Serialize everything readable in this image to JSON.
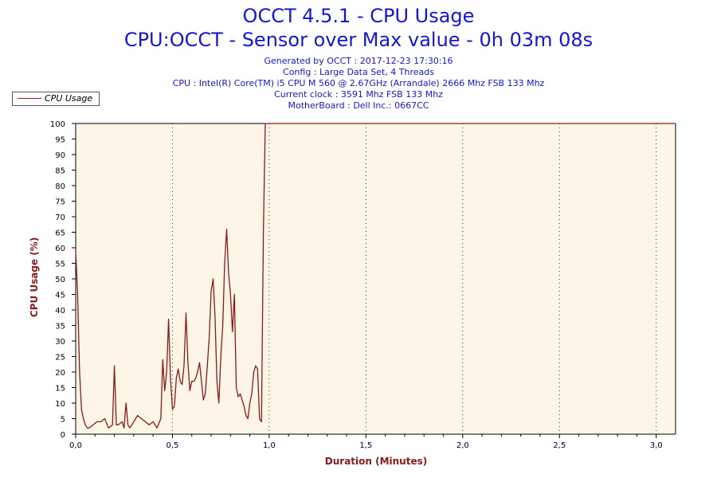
{
  "header": {
    "title": "OCCT 4.5.1 - CPU Usage",
    "subtitle": "CPU:OCCT - Sensor over Max value - 0h 03m 08s"
  },
  "info": {
    "generated": "Generated by OCCT : 2017-12-23 17:30:16",
    "config": "Config : Large Data Set, 4 Threads",
    "cpu": "CPU : Intel(R) Core(TM) i5 CPU M 560 @ 2.67GHz (Arrandale) 2666 Mhz FSB 133 Mhz",
    "clock": "Current clock : 3591 Mhz FSB 133 Mhz",
    "motherboard": "MotherBoard : Dell Inc.: 0667CC"
  },
  "colors": {
    "title": "#1515d4",
    "series": "#8b1a1a",
    "plot_background": "#fdf5e6",
    "axis_label": "#8b1a1a"
  },
  "chart_data": {
    "type": "line",
    "title": "OCCT 4.5.1 - CPU Usage",
    "xlabel": "Duration (Minutes)",
    "ylabel": "CPU Usage (%)",
    "xlim": [
      0,
      3.1
    ],
    "ylim": [
      0,
      100
    ],
    "x_ticks": [
      0,
      0.5,
      1.0,
      1.5,
      2.0,
      2.5,
      3.0
    ],
    "x_tick_labels": [
      "0,0",
      "0,5",
      "1,0",
      "1,5",
      "2,0",
      "2,5",
      "3,0"
    ],
    "y_ticks": [
      0,
      5,
      10,
      15,
      20,
      25,
      30,
      35,
      40,
      45,
      50,
      55,
      60,
      65,
      70,
      75,
      80,
      85,
      90,
      95,
      100
    ],
    "grid": "vertical dotted",
    "legend_position": "top-left",
    "series": [
      {
        "name": "CPU Usage",
        "x": [
          0.0,
          0.01,
          0.02,
          0.03,
          0.04,
          0.05,
          0.06,
          0.07,
          0.09,
          0.11,
          0.13,
          0.15,
          0.17,
          0.19,
          0.2,
          0.21,
          0.22,
          0.24,
          0.25,
          0.26,
          0.27,
          0.28,
          0.3,
          0.32,
          0.34,
          0.36,
          0.38,
          0.4,
          0.42,
          0.44,
          0.45,
          0.46,
          0.47,
          0.48,
          0.49,
          0.5,
          0.51,
          0.52,
          0.53,
          0.54,
          0.55,
          0.56,
          0.57,
          0.58,
          0.59,
          0.6,
          0.61,
          0.62,
          0.63,
          0.64,
          0.65,
          0.66,
          0.67,
          0.68,
          0.69,
          0.7,
          0.71,
          0.72,
          0.73,
          0.74,
          0.75,
          0.76,
          0.77,
          0.78,
          0.79,
          0.8,
          0.81,
          0.82,
          0.83,
          0.84,
          0.85,
          0.86,
          0.87,
          0.88,
          0.89,
          0.9,
          0.91,
          0.92,
          0.93,
          0.94,
          0.95,
          0.96,
          0.97,
          0.98,
          0.99,
          1.0,
          1.01,
          1.02,
          1.025,
          1.03,
          1.035,
          1.04,
          1.045,
          1.05,
          1.055,
          1.06,
          1.08,
          1.2,
          1.5,
          2.0,
          2.5,
          3.0,
          3.1
        ],
        "values": [
          59,
          45,
          20,
          8,
          5,
          3,
          2,
          2,
          3,
          4,
          4,
          5,
          2,
          3,
          22,
          3,
          3,
          4,
          2,
          10,
          3,
          2,
          4,
          6,
          5,
          4,
          3,
          4,
          2,
          5,
          24,
          14,
          20,
          37,
          18,
          8,
          9,
          18,
          21,
          17,
          16,
          22,
          39,
          23,
          14,
          17,
          17,
          18,
          20,
          23,
          17,
          11,
          13,
          22,
          31,
          46,
          50,
          38,
          17,
          10,
          25,
          35,
          55,
          66,
          52,
          45,
          33,
          45,
          15,
          12,
          13,
          11,
          9,
          6,
          5,
          10,
          13,
          20,
          22,
          21,
          5,
          4,
          65,
          100,
          100,
          100,
          100,
          100,
          100,
          100,
          100,
          100,
          100,
          100,
          100,
          100,
          100,
          100,
          100,
          100,
          100,
          100,
          100
        ]
      }
    ]
  }
}
